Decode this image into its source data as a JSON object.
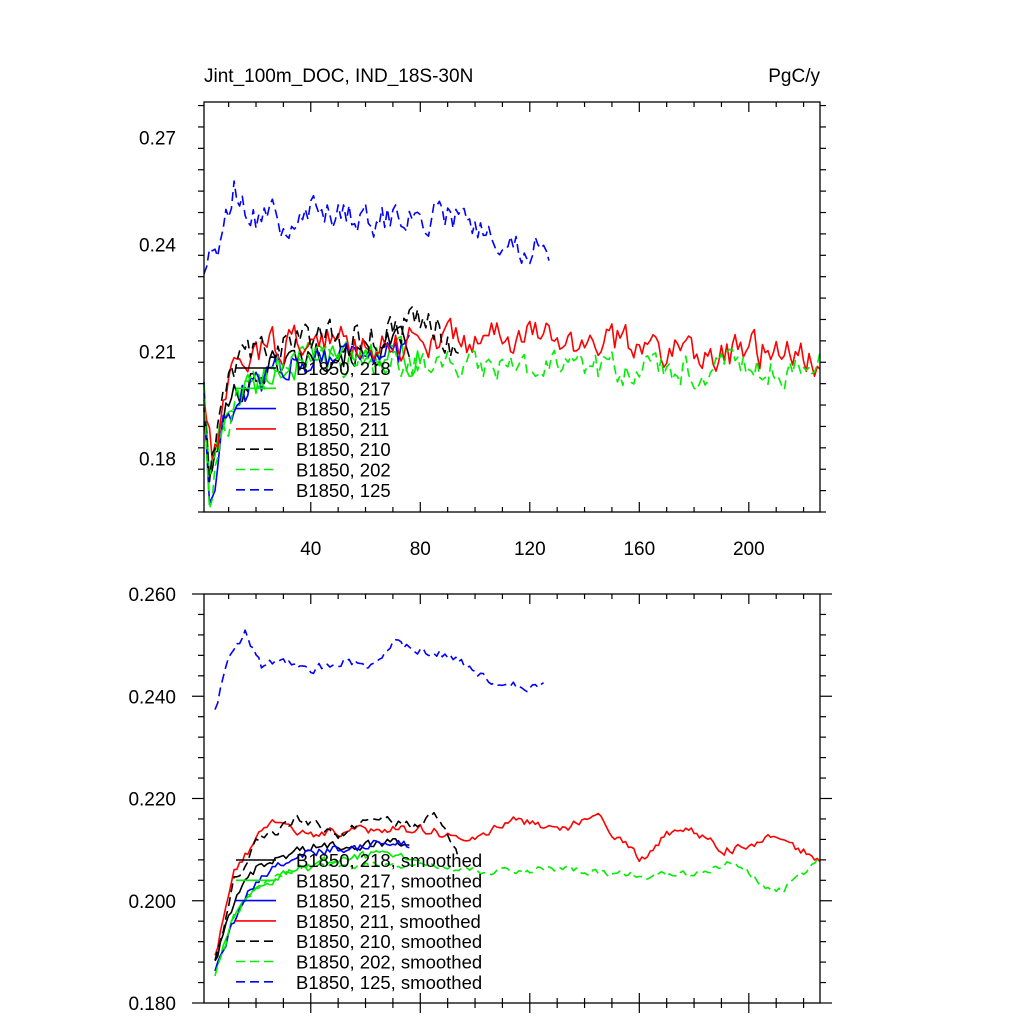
{
  "chart_data": [
    {
      "type": "line",
      "title_left": "Jint_100m_DOC, IND_18S-30N",
      "title_right": "PgC/y",
      "xlim": [
        1,
        226
      ],
      "ylim": [
        0.165,
        0.28
      ],
      "x_ticks": [
        40,
        80,
        120,
        160,
        200
      ],
      "x_tick_labels": [
        "40",
        "80",
        "120",
        "160",
        "200"
      ],
      "y_ticks": [
        0.18,
        0.21,
        0.24,
        0.27
      ],
      "y_tick_labels": [
        "0.18",
        "0.21",
        "0.24",
        "0.27"
      ],
      "legend": "lower-left",
      "series": [
        {
          "name": "B1850, 218",
          "color": "#000000",
          "dash": "solid",
          "x_start": 1,
          "anchors": [
            [
              1,
              0.196
            ],
            [
              3,
              0.172
            ],
            [
              8,
              0.192
            ],
            [
              15,
              0.201
            ],
            [
              25,
              0.206
            ],
            [
              40,
              0.21
            ],
            [
              60,
              0.21
            ],
            [
              76,
              0.212
            ]
          ],
          "noise": 0.007
        },
        {
          "name": "B1850, 217",
          "color": "#00ee00",
          "dash": "solid",
          "x_start": 1,
          "anchors": [
            [
              1,
              0.2
            ],
            [
              3,
              0.175
            ],
            [
              8,
              0.19
            ],
            [
              15,
              0.199
            ],
            [
              25,
              0.204
            ],
            [
              40,
              0.208
            ],
            [
              60,
              0.209
            ],
            [
              80,
              0.208
            ]
          ],
          "noise": 0.007
        },
        {
          "name": "B1850, 215",
          "color": "#0000ff",
          "dash": "solid",
          "x_start": 1,
          "anchors": [
            [
              1,
              0.203
            ],
            [
              3,
              0.168
            ],
            [
              8,
              0.188
            ],
            [
              15,
              0.197
            ],
            [
              25,
              0.204
            ],
            [
              40,
              0.209
            ],
            [
              60,
              0.21
            ],
            [
              76,
              0.209
            ]
          ],
          "noise": 0.007
        },
        {
          "name": "B1850, 211",
          "color": "#ff0000",
          "dash": "solid",
          "x_start": 1,
          "anchors": [
            [
              1,
              0.198
            ],
            [
              4,
              0.178
            ],
            [
              10,
              0.2
            ],
            [
              20,
              0.211
            ],
            [
              40,
              0.213
            ],
            [
              80,
              0.213
            ],
            [
              120,
              0.214
            ],
            [
              160,
              0.212
            ],
            [
              180,
              0.21
            ],
            [
              200,
              0.21
            ],
            [
              226,
              0.208
            ]
          ],
          "noise": 0.008
        },
        {
          "name": "B1850, 210",
          "color": "#000000",
          "dash": "dashed",
          "x_start": 1,
          "anchors": [
            [
              1,
              0.195
            ],
            [
              3,
              0.174
            ],
            [
              9,
              0.2
            ],
            [
              20,
              0.212
            ],
            [
              40,
              0.213
            ],
            [
              60,
              0.214
            ],
            [
              84,
              0.22
            ],
            [
              94,
              0.207
            ]
          ],
          "noise": 0.008
        },
        {
          "name": "B1850, 202",
          "color": "#00ee00",
          "dash": "dashed",
          "x_start": 1,
          "anchors": [
            [
              1,
              0.202
            ],
            [
              3,
              0.166
            ],
            [
              8,
              0.188
            ],
            [
              15,
              0.2
            ],
            [
              30,
              0.206
            ],
            [
              60,
              0.207
            ],
            [
              100,
              0.206
            ],
            [
              140,
              0.205
            ],
            [
              180,
              0.205
            ],
            [
              200,
              0.207
            ],
            [
              215,
              0.203
            ],
            [
              226,
              0.21
            ]
          ],
          "noise": 0.007
        },
        {
          "name": "B1850, 125",
          "color": "#0000ff",
          "dash": "dashed",
          "x_start": 1,
          "anchors": [
            [
              1,
              0.233
            ],
            [
              5,
              0.236
            ],
            [
              12,
              0.255
            ],
            [
              20,
              0.248
            ],
            [
              30,
              0.246
            ],
            [
              40,
              0.25
            ],
            [
              60,
              0.247
            ],
            [
              80,
              0.25
            ],
            [
              100,
              0.245
            ],
            [
              115,
              0.24
            ],
            [
              127,
              0.239
            ]
          ],
          "noise": 0.008
        }
      ]
    },
    {
      "type": "line",
      "xlim": [
        1,
        226
      ],
      "ylim": [
        0.18,
        0.26
      ],
      "y_ticks": [
        0.18,
        0.2,
        0.22,
        0.24,
        0.26
      ],
      "y_tick_labels": [
        "0.180",
        "0.200",
        "0.220",
        "0.240",
        "0.260"
      ],
      "legend": "lower-left",
      "series": [
        {
          "name": "B1850, 218, smoothed",
          "color": "#000000",
          "dash": "solid",
          "x_start": 5,
          "anchors": [
            [
              5,
              0.188
            ],
            [
              12,
              0.2
            ],
            [
              20,
              0.206
            ],
            [
              35,
              0.21
            ],
            [
              50,
              0.211
            ],
            [
              65,
              0.211
            ],
            [
              76,
              0.212
            ]
          ],
          "noise": 0.0015
        },
        {
          "name": "B1850, 217, smoothed",
          "color": "#00ee00",
          "dash": "solid",
          "x_start": 5,
          "anchors": [
            [
              5,
              0.186
            ],
            [
              12,
              0.197
            ],
            [
              20,
              0.203
            ],
            [
              35,
              0.206
            ],
            [
              50,
              0.208
            ],
            [
              65,
              0.209
            ],
            [
              80,
              0.209
            ]
          ],
          "noise": 0.0015
        },
        {
          "name": "B1850, 215, smoothed",
          "color": "#0000ff",
          "dash": "solid",
          "x_start": 5,
          "anchors": [
            [
              5,
              0.186
            ],
            [
              12,
              0.196
            ],
            [
              20,
              0.204
            ],
            [
              35,
              0.209
            ],
            [
              50,
              0.21
            ],
            [
              65,
              0.211
            ],
            [
              76,
              0.211
            ]
          ],
          "noise": 0.0015
        },
        {
          "name": "B1850, 211, smoothed",
          "color": "#ff0000",
          "dash": "solid",
          "x_start": 5,
          "anchors": [
            [
              5,
              0.189
            ],
            [
              12,
              0.205
            ],
            [
              20,
              0.212
            ],
            [
              25,
              0.216
            ],
            [
              40,
              0.213
            ],
            [
              60,
              0.214
            ],
            [
              80,
              0.214
            ],
            [
              100,
              0.212
            ],
            [
              115,
              0.216
            ],
            [
              130,
              0.214
            ],
            [
              145,
              0.216
            ],
            [
              160,
              0.208
            ],
            [
              175,
              0.215
            ],
            [
              190,
              0.21
            ],
            [
              200,
              0.21
            ],
            [
              210,
              0.213
            ],
            [
              218,
              0.21
            ],
            [
              226,
              0.208
            ]
          ],
          "noise": 0.0015
        },
        {
          "name": "B1850, 210, smoothed",
          "color": "#000000",
          "dash": "dashed",
          "x_start": 5,
          "anchors": [
            [
              5,
              0.188
            ],
            [
              12,
              0.204
            ],
            [
              20,
              0.211
            ],
            [
              35,
              0.216
            ],
            [
              50,
              0.213
            ],
            [
              65,
              0.216
            ],
            [
              80,
              0.214
            ],
            [
              85,
              0.218
            ],
            [
              94,
              0.208
            ]
          ],
          "noise": 0.0015
        },
        {
          "name": "B1850, 202, smoothed",
          "color": "#00ee00",
          "dash": "dashed",
          "x_start": 5,
          "anchors": [
            [
              5,
              0.185
            ],
            [
              12,
              0.197
            ],
            [
              20,
              0.203
            ],
            [
              40,
              0.207
            ],
            [
              60,
              0.207
            ],
            [
              80,
              0.207
            ],
            [
              100,
              0.206
            ],
            [
              120,
              0.206
            ],
            [
              140,
              0.206
            ],
            [
              160,
              0.205
            ],
            [
              180,
              0.205
            ],
            [
              195,
              0.208
            ],
            [
              205,
              0.203
            ],
            [
              212,
              0.202
            ],
            [
              226,
              0.208
            ]
          ],
          "noise": 0.0012
        },
        {
          "name": "B1850, 125, smoothed",
          "color": "#0000ff",
          "dash": "dashed",
          "x_start": 5,
          "anchors": [
            [
              5,
              0.237
            ],
            [
              10,
              0.247
            ],
            [
              16,
              0.252
            ],
            [
              22,
              0.246
            ],
            [
              30,
              0.247
            ],
            [
              40,
              0.245
            ],
            [
              50,
              0.247
            ],
            [
              60,
              0.246
            ],
            [
              70,
              0.25
            ],
            [
              80,
              0.249
            ],
            [
              90,
              0.248
            ],
            [
              100,
              0.245
            ],
            [
              110,
              0.242
            ],
            [
              120,
              0.242
            ],
            [
              125,
              0.243
            ]
          ],
          "noise": 0.0015
        }
      ]
    }
  ]
}
